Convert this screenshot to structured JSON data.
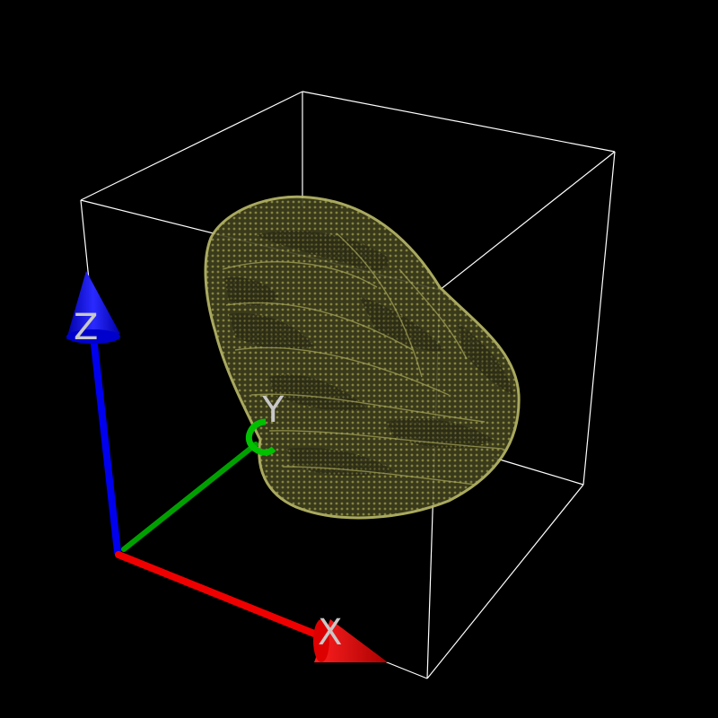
{
  "viewport": {
    "background": "#000000",
    "bounding_box_color": "#ffffff"
  },
  "object": {
    "kind": "voxel-surface",
    "color": "#8a8a3a",
    "edge_color": "#c9c97a",
    "shade_color": "#3a3a1c"
  },
  "axes": {
    "x": {
      "label": "X",
      "color": "#ff0000"
    },
    "y": {
      "label": "Y",
      "color": "#00aa00"
    },
    "z": {
      "label": "Z",
      "color": "#0000ff"
    }
  }
}
